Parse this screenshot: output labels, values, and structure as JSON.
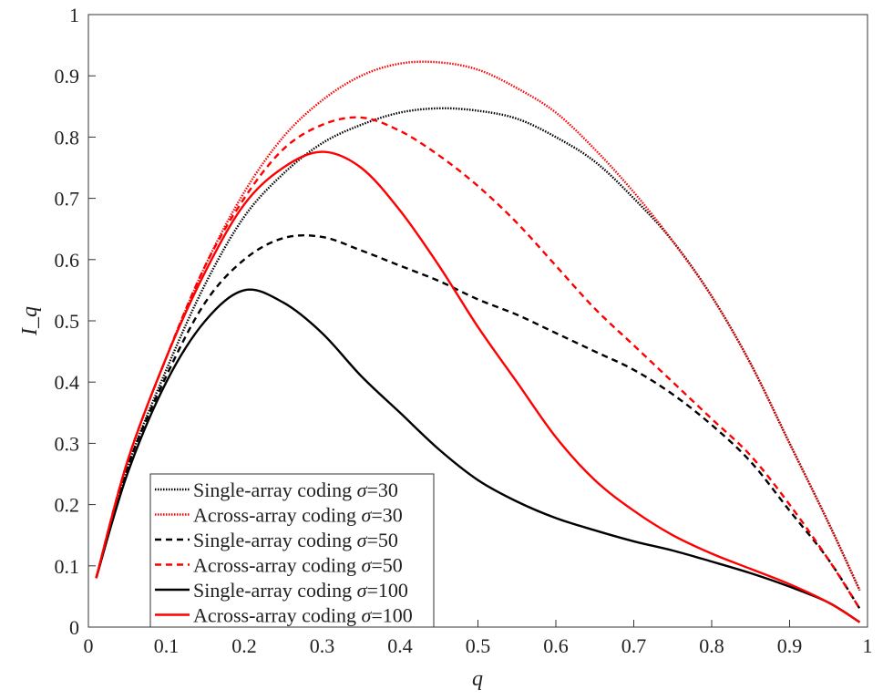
{
  "chart_data": {
    "type": "line",
    "title": "",
    "xlabel": "q",
    "ylabel": "I_q",
    "xlim": [
      0,
      1
    ],
    "ylim": [
      0,
      1
    ],
    "xticks": [
      "0",
      "0.1",
      "0.2",
      "0.3",
      "0.4",
      "0.5",
      "0.6",
      "0.7",
      "0.8",
      "0.9",
      "1"
    ],
    "yticks": [
      "0",
      "0.1",
      "0.2",
      "0.3",
      "0.4",
      "0.5",
      "0.6",
      "0.7",
      "0.8",
      "0.9",
      "1"
    ],
    "grid": false,
    "legend_position": "bottom-left",
    "x": [
      0.01,
      0.05,
      0.1,
      0.15,
      0.2,
      0.25,
      0.3,
      0.35,
      0.4,
      0.45,
      0.5,
      0.55,
      0.6,
      0.65,
      0.7,
      0.75,
      0.8,
      0.85,
      0.9,
      0.95,
      0.99
    ],
    "series": [
      {
        "name": "Single-array  coding σ=30",
        "color": "#000000",
        "style": "dotted",
        "values": [
          0.08,
          0.26,
          0.42,
          0.56,
          0.67,
          0.74,
          0.79,
          0.82,
          0.84,
          0.847,
          0.843,
          0.83,
          0.8,
          0.76,
          0.7,
          0.63,
          0.54,
          0.43,
          0.3,
          0.17,
          0.06
        ]
      },
      {
        "name": "Across-array coding σ=30",
        "color": "#ff0000",
        "style": "dotted",
        "values": [
          0.08,
          0.27,
          0.44,
          0.59,
          0.71,
          0.8,
          0.86,
          0.9,
          0.92,
          0.922,
          0.91,
          0.88,
          0.84,
          0.78,
          0.71,
          0.63,
          0.54,
          0.43,
          0.3,
          0.17,
          0.06
        ]
      },
      {
        "name": "Single-array  coding σ=50",
        "color": "#000000",
        "style": "dashed",
        "values": [
          0.08,
          0.26,
          0.41,
          0.53,
          0.6,
          0.635,
          0.637,
          0.615,
          0.59,
          0.565,
          0.535,
          0.51,
          0.48,
          0.45,
          0.42,
          0.38,
          0.33,
          0.27,
          0.19,
          0.11,
          0.03
        ]
      },
      {
        "name": "Across-array coding σ=50",
        "color": "#ff0000",
        "style": "dashed",
        "values": [
          0.08,
          0.27,
          0.44,
          0.59,
          0.7,
          0.78,
          0.82,
          0.832,
          0.81,
          0.77,
          0.72,
          0.66,
          0.59,
          0.52,
          0.46,
          0.4,
          0.34,
          0.28,
          0.2,
          0.11,
          0.03
        ]
      },
      {
        "name": "Single-array  coding σ=100",
        "color": "#000000",
        "style": "solid",
        "values": [
          0.08,
          0.25,
          0.4,
          0.5,
          0.55,
          0.53,
          0.48,
          0.41,
          0.35,
          0.29,
          0.24,
          0.205,
          0.178,
          0.158,
          0.14,
          0.125,
          0.107,
          0.088,
          0.066,
          0.04,
          0.008
        ]
      },
      {
        "name": "Across-array coding σ=100",
        "color": "#ff0000",
        "style": "solid",
        "values": [
          0.08,
          0.27,
          0.44,
          0.58,
          0.69,
          0.75,
          0.776,
          0.75,
          0.68,
          0.59,
          0.49,
          0.4,
          0.31,
          0.24,
          0.19,
          0.15,
          0.12,
          0.095,
          0.07,
          0.04,
          0.008
        ]
      }
    ]
  }
}
